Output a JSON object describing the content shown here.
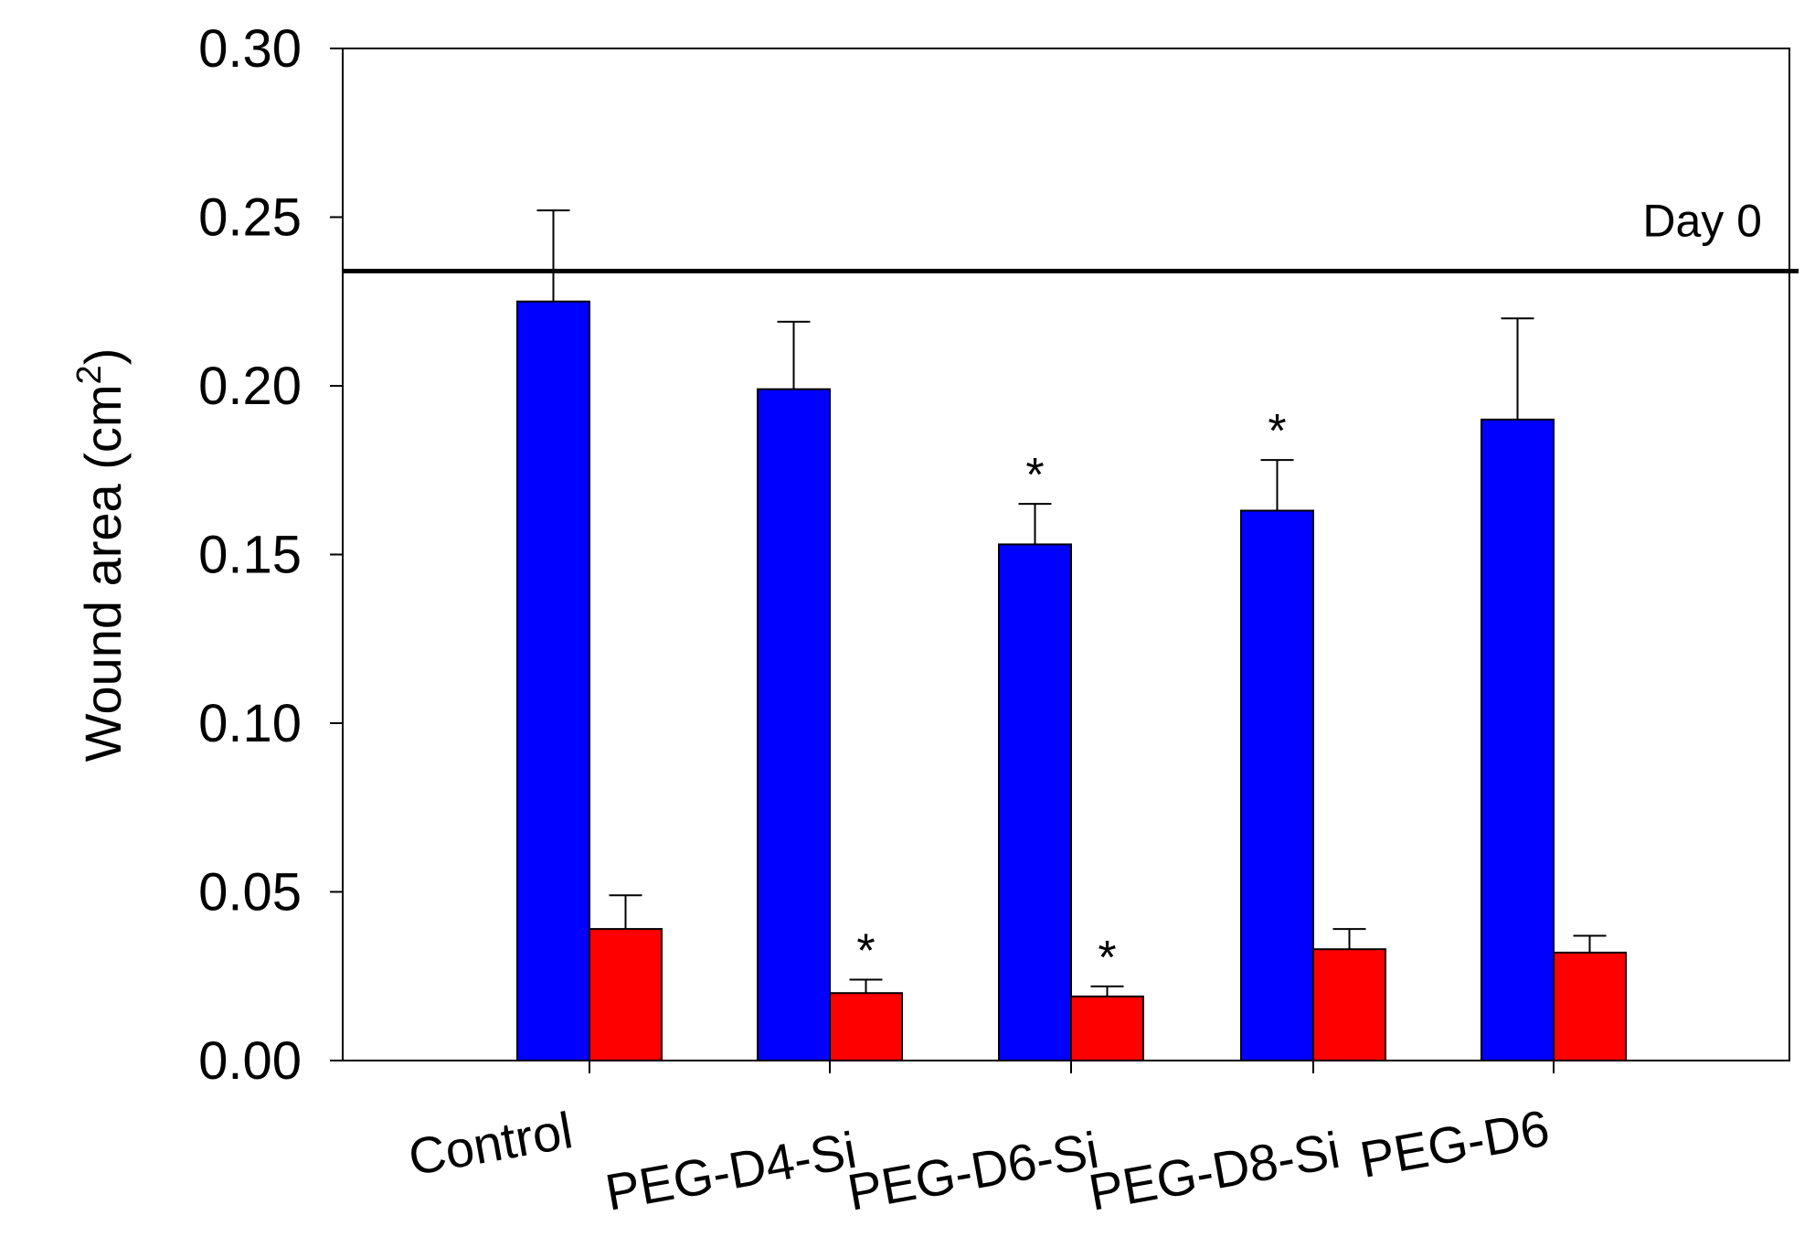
{
  "chart_data": {
    "type": "bar",
    "title": "",
    "xlabel": "",
    "ylabel": "Wound area (cm",
    "ylabel_superscript": "2",
    "ylabel_close": ")",
    "ylim": [
      0,
      0.3
    ],
    "yticks": [
      "0.00",
      "0.05",
      "0.10",
      "0.15",
      "0.20",
      "0.25",
      "0.30"
    ],
    "ytick_values": [
      0,
      0.05,
      0.1,
      0.15,
      0.2,
      0.25,
      0.3
    ],
    "grid": false,
    "categories": [
      "Control",
      "PEG-D4-Si",
      "PEG-D6-Si",
      "PEG-D8-Si",
      "PEG-D6"
    ],
    "series": [
      {
        "name": "series-blue",
        "color": "#0000ff",
        "values": [
          0.225,
          0.199,
          0.153,
          0.163,
          0.19
        ],
        "errors": [
          0.027,
          0.02,
          0.012,
          0.015,
          0.03
        ],
        "significance": [
          "",
          "",
          "*",
          "*",
          ""
        ]
      },
      {
        "name": "series-red",
        "color": "#ff0000",
        "values": [
          0.039,
          0.02,
          0.019,
          0.033,
          0.032
        ],
        "errors": [
          0.01,
          0.004,
          0.003,
          0.006,
          0.005
        ],
        "significance": [
          "",
          "*",
          "*",
          "",
          ""
        ]
      }
    ],
    "reference_line": {
      "label": "Day 0",
      "value": 0.234
    }
  }
}
